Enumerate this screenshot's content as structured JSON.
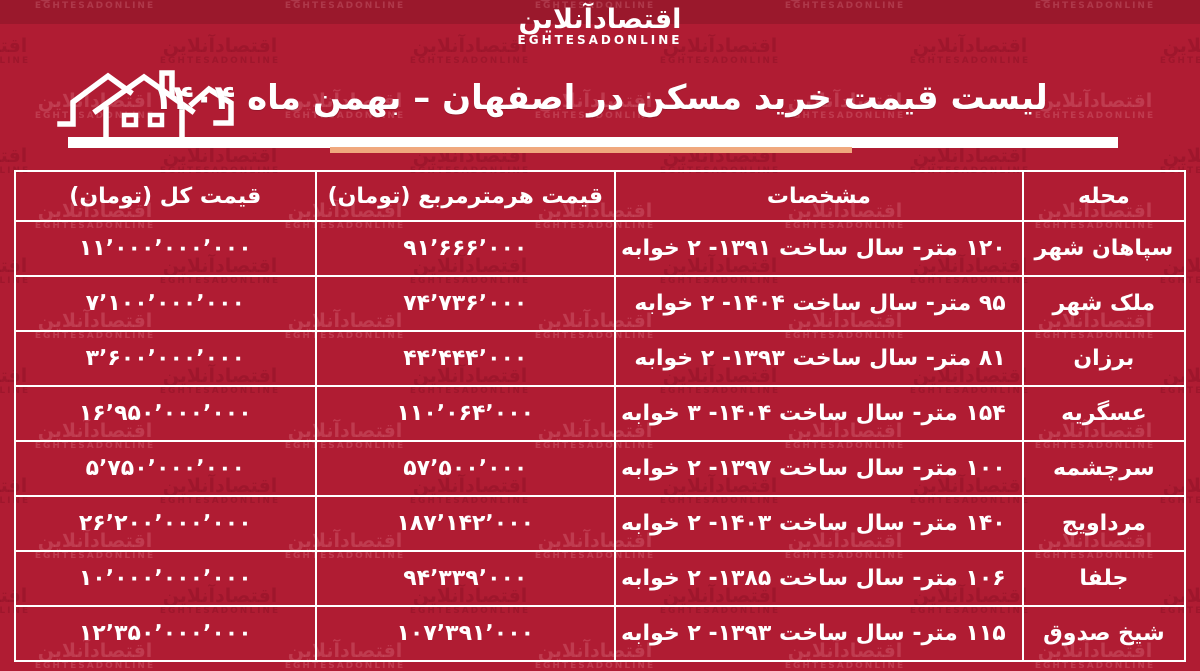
{
  "colors": {
    "background": "#B01C33",
    "accent_underline": "#F0A87E",
    "border": "#FFFFFF",
    "text": "#FFFFFF"
  },
  "brand": {
    "name_fa": "اقتصادآنلاین",
    "name_en": "EGHTESADONLINE"
  },
  "watermark": {
    "text_fa": "اقتصادآنلاین",
    "text_en": "EGHTESADONLINE"
  },
  "header": {
    "title": "لیست قیمت خرید مسکن در اصفهان – بهمن ماه ۱۴۰۴"
  },
  "table": {
    "columns": [
      "محله",
      "مشخصات",
      "قیمت هرمترمربع (تومان)",
      "قیمت کل (تومان)"
    ],
    "rows": [
      {
        "neighborhood": "سپاهان شهر",
        "specs": "۱۲۰ متر- سال ساخت ۱۳۹۱- ۲ خوابه",
        "price_per_meter": "۹۱٬۶۶۶٬۰۰۰",
        "total_price": "۱۱٬۰۰۰٬۰۰۰٬۰۰۰"
      },
      {
        "neighborhood": "ملک شهر",
        "specs": "۹۵ متر- سال ساخت ۱۴۰۴- ۲ خوابه",
        "price_per_meter": "۷۴٬۷۳۶٬۰۰۰",
        "total_price": "۷٬۱۰۰٬۰۰۰٬۰۰۰"
      },
      {
        "neighborhood": "برزان",
        "specs": "۸۱ متر- سال ساخت ۱۳۹۳- ۲ خوابه",
        "price_per_meter": "۴۴٬۴۴۴٬۰۰۰",
        "total_price": "۳٬۶۰۰٬۰۰۰٬۰۰۰"
      },
      {
        "neighborhood": "عسگریه",
        "specs": "۱۵۴ متر- سال ساخت ۱۴۰۴- ۳ خوابه",
        "price_per_meter": "۱۱۰٬۰۶۴٬۰۰۰",
        "total_price": "۱۶٬۹۵۰٬۰۰۰٬۰۰۰"
      },
      {
        "neighborhood": "سرچشمه",
        "specs": "۱۰۰ متر- سال ساخت ۱۳۹۷- ۲ خوابه",
        "price_per_meter": "۵۷٬۵۰۰٬۰۰۰",
        "total_price": "۵٬۷۵۰٬۰۰۰٬۰۰۰"
      },
      {
        "neighborhood": "مرداویج",
        "specs": "۱۴۰ متر- سال ساخت ۱۴۰۳- ۲ خوابه",
        "price_per_meter": "۱۸۷٬۱۴۲٬۰۰۰",
        "total_price": "۲۶٬۲۰۰٬۰۰۰٬۰۰۰"
      },
      {
        "neighborhood": "جلفا",
        "specs": "۱۰۶ متر- سال ساخت ۱۳۸۵- ۲ خوابه",
        "price_per_meter": "۹۴٬۳۳۹٬۰۰۰",
        "total_price": "۱۰٬۰۰۰٬۰۰۰٬۰۰۰"
      },
      {
        "neighborhood": "شیخ صدوق",
        "specs": "۱۱۵ متر- سال ساخت ۱۳۹۳- ۲ خوابه",
        "price_per_meter": "۱۰۷٬۳۹۱٬۰۰۰",
        "total_price": "۱۲٬۳۵۰٬۰۰۰٬۰۰۰"
      }
    ]
  }
}
